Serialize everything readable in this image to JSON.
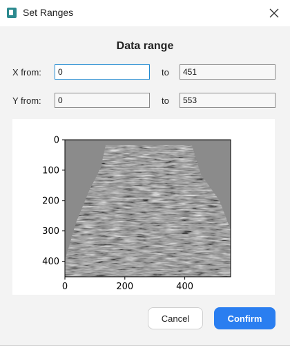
{
  "window": {
    "title": "Set Ranges",
    "icon": "app-icon",
    "close_icon": "close-icon"
  },
  "form": {
    "heading": "Data range",
    "x_from_label": "X from:",
    "x_from_value": "0",
    "x_to_label": "to",
    "x_to_value": "451",
    "y_from_label": "Y from:",
    "y_from_value": "0",
    "y_to_label": "to",
    "y_to_value": "553"
  },
  "chart_data": {
    "type": "heatmap",
    "image": "grayscale seismic section",
    "x_ticks": [
      0,
      200,
      400
    ],
    "y_ticks": [
      0,
      100,
      200,
      300,
      400
    ],
    "xlim": [
      0,
      553
    ],
    "ylim": [
      451,
      0
    ],
    "colormap": "gray"
  },
  "buttons": {
    "cancel": "Cancel",
    "confirm": "Confirm"
  },
  "colors": {
    "accent": "#2a7ef0",
    "focus_border": "#1f8ad2"
  }
}
